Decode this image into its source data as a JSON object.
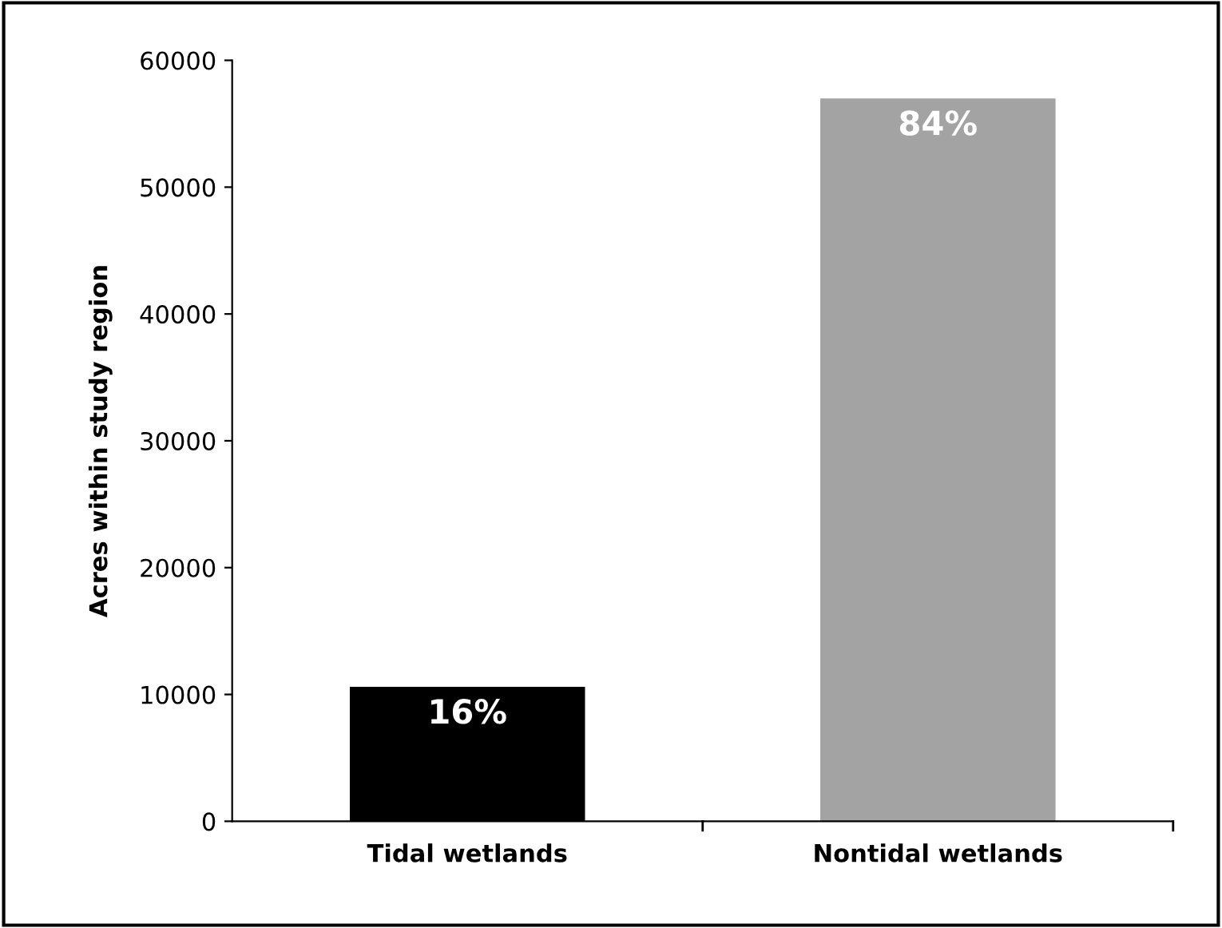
{
  "chart_data": {
    "type": "bar",
    "ylabel": "Acres within study region",
    "categories": [
      "Tidal wetlands",
      "Nontidal wetlands"
    ],
    "values": [
      10600,
      57000
    ],
    "colors": [
      "#000000",
      "#a3a3a3"
    ],
    "annotations": [
      {
        "text": "16%",
        "x": "Tidal wetlands",
        "y": 10600
      },
      {
        "text": "84%",
        "x": "Nontidal wetlands",
        "y": 57000
      }
    ],
    "ylim": [
      0,
      60000
    ],
    "yticks": [
      0,
      10000,
      20000,
      30000,
      40000,
      50000,
      60000
    ],
    "grid": false,
    "legend": false
  }
}
